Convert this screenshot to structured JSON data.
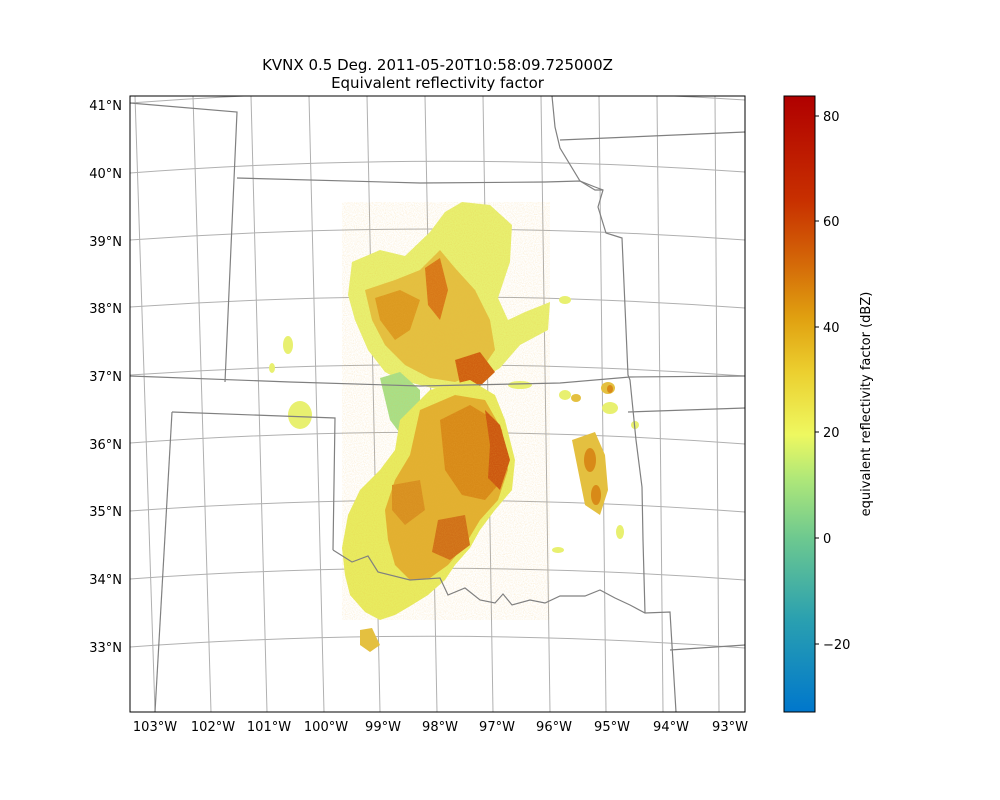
{
  "title": {
    "line1": "KVNX 0.5 Deg. 2011-05-20T10:58:09.725000Z",
    "line2": "Equivalent reflectivity factor"
  },
  "map": {
    "lon_labels": [
      "103°W",
      "102°W",
      "101°W",
      "100°W",
      "99°W",
      "98°W",
      "97°W",
      "96°W",
      "95°W",
      "94°W",
      "93°W"
    ],
    "lat_labels": [
      "33°N",
      "34°N",
      "35°N",
      "36°N",
      "37°N",
      "38°N",
      "39°N",
      "40°N",
      "41°N"
    ],
    "lon_range": [
      -103.4,
      -92.8
    ],
    "lat_range": [
      32.1,
      41.2
    ],
    "gridlines": true
  },
  "colorbar": {
    "label": "equivalent reflectivity factor (dBZ)",
    "ticks": [
      "80",
      "60",
      "40",
      "20",
      "0",
      "−20"
    ],
    "range": [
      -32,
      83
    ],
    "colors": [
      "#0077cc",
      "#1a94b8",
      "#3aaaa0",
      "#5ec090",
      "#8fd880",
      "#c0ee70",
      "#eef860",
      "#f4e040",
      "#ecc020",
      "#e0a010",
      "#d88010",
      "#d46008",
      "#c83000",
      "#b00000"
    ]
  },
  "states_color": "#808080",
  "grid_color": "#b0b0b0"
}
